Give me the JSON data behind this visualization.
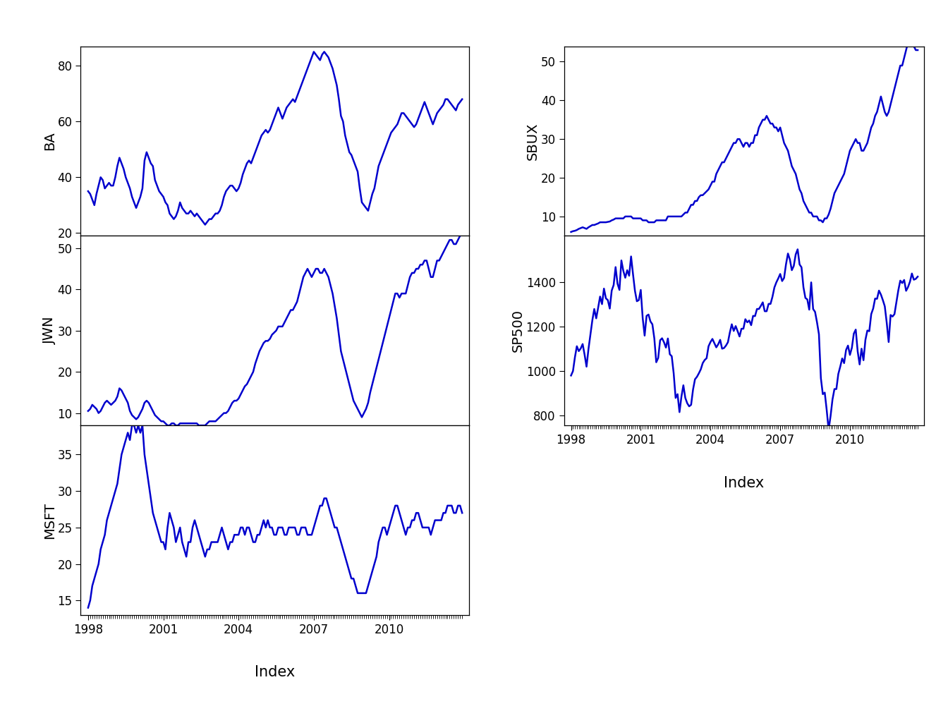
{
  "line_color": "#0000CD",
  "line_width": 1.8,
  "bg_color": "#FFFFFF",
  "xlabel": "Index",
  "xlabel_fontsize": 15,
  "tick_fontsize": 12,
  "ylabel_fontsize": 14,
  "left_panels": [
    {
      "key": "BA",
      "ylim": [
        19,
        87
      ],
      "yticks": [
        20,
        40,
        60,
        80
      ]
    },
    {
      "key": "JWN",
      "ylim": [
        7,
        53
      ],
      "yticks": [
        10,
        20,
        30,
        40,
        50
      ]
    },
    {
      "key": "MSFT",
      "ylim": [
        13,
        39
      ],
      "yticks": [
        15,
        20,
        25,
        30,
        35
      ]
    }
  ],
  "right_panels": [
    {
      "key": "SBUX",
      "ylim": [
        5,
        54
      ],
      "yticks": [
        10,
        20,
        30,
        40,
        50
      ]
    },
    {
      "key": "SP500",
      "ylim": [
        755,
        1610
      ],
      "yticks": [
        800,
        1000,
        1200,
        1400
      ]
    }
  ],
  "xtick_years": [
    1998,
    2001,
    2004,
    2007,
    2010
  ],
  "xlim": [
    1997.7,
    2013.2
  ]
}
